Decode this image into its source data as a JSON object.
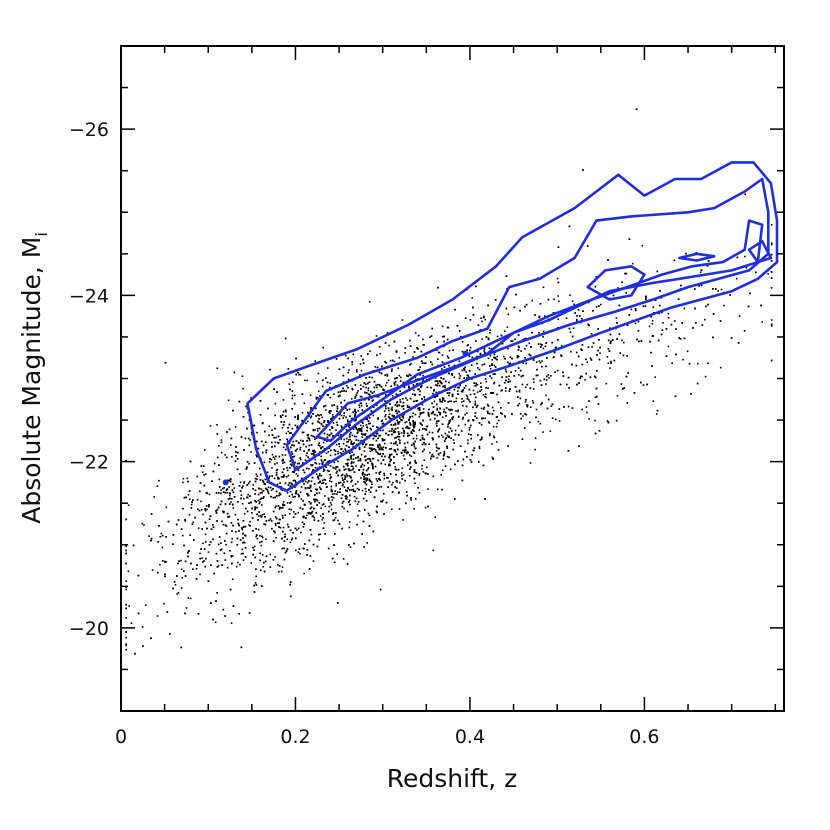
{
  "chart_data": {
    "type": "scatter",
    "xlabel": "Redshift, z",
    "ylabel": "Absolute Magnitude, M",
    "ylabel_subscript": "i",
    "xlim": [
      0,
      0.76
    ],
    "ylim": [
      -19,
      -27
    ],
    "y_inverted": true,
    "xticks": [
      0,
      0.2,
      0.4,
      0.6
    ],
    "xtick_labels": [
      "0",
      "0.2",
      "0.4",
      "0.6"
    ],
    "yticks": [
      -20,
      -22,
      -24,
      -26
    ],
    "ytick_labels": [
      "−20",
      "−22",
      "−24",
      "−26"
    ],
    "grid": false,
    "point_color": "#000000",
    "contour_color": "#1f2fe0",
    "scatter_description": {
      "n_points": 5200,
      "trend": "magnitude brightens with redshift",
      "core_center": [
        0.25,
        -22.4
      ],
      "outliers": [
        [
          0.59,
          -26.25
        ],
        [
          0.05,
          -23.2
        ],
        [
          0.015,
          -19.7
        ]
      ]
    },
    "contours": [
      {
        "name": "outer",
        "points": [
          [
            0.145,
            -22.7
          ],
          [
            0.175,
            -23.0
          ],
          [
            0.215,
            -23.15
          ],
          [
            0.27,
            -23.35
          ],
          [
            0.33,
            -23.65
          ],
          [
            0.38,
            -23.95
          ],
          [
            0.43,
            -24.35
          ],
          [
            0.46,
            -24.7
          ],
          [
            0.52,
            -25.05
          ],
          [
            0.57,
            -25.45
          ],
          [
            0.6,
            -25.2
          ],
          [
            0.635,
            -25.4
          ],
          [
            0.665,
            -25.4
          ],
          [
            0.7,
            -25.6
          ],
          [
            0.725,
            -25.6
          ],
          [
            0.745,
            -25.35
          ],
          [
            0.752,
            -24.9
          ],
          [
            0.752,
            -24.4
          ],
          [
            0.73,
            -24.2
          ],
          [
            0.7,
            -24.05
          ],
          [
            0.665,
            -23.95
          ],
          [
            0.63,
            -23.85
          ],
          [
            0.59,
            -23.7
          ],
          [
            0.55,
            -23.55
          ],
          [
            0.5,
            -23.35
          ],
          [
            0.445,
            -23.15
          ],
          [
            0.4,
            -23.0
          ],
          [
            0.36,
            -22.8
          ],
          [
            0.31,
            -22.5
          ],
          [
            0.265,
            -22.15
          ],
          [
            0.225,
            -21.9
          ],
          [
            0.19,
            -21.65
          ],
          [
            0.17,
            -21.75
          ],
          [
            0.155,
            -22.15
          ],
          [
            0.145,
            -22.7
          ]
        ]
      },
      {
        "name": "middle",
        "points": [
          [
            0.19,
            -22.2
          ],
          [
            0.235,
            -22.85
          ],
          [
            0.28,
            -23.05
          ],
          [
            0.34,
            -23.25
          ],
          [
            0.38,
            -23.45
          ],
          [
            0.42,
            -23.6
          ],
          [
            0.445,
            -24.1
          ],
          [
            0.48,
            -24.2
          ],
          [
            0.52,
            -24.45
          ],
          [
            0.545,
            -24.9
          ],
          [
            0.585,
            -24.95
          ],
          [
            0.65,
            -25.0
          ],
          [
            0.68,
            -25.05
          ],
          [
            0.715,
            -25.25
          ],
          [
            0.735,
            -25.4
          ],
          [
            0.742,
            -25.0
          ],
          [
            0.742,
            -24.5
          ],
          [
            0.72,
            -24.3
          ],
          [
            0.685,
            -24.2
          ],
          [
            0.65,
            -24.1
          ],
          [
            0.61,
            -23.95
          ],
          [
            0.565,
            -23.8
          ],
          [
            0.515,
            -23.65
          ],
          [
            0.46,
            -23.45
          ],
          [
            0.41,
            -23.25
          ],
          [
            0.355,
            -23.0
          ],
          [
            0.31,
            -22.75
          ],
          [
            0.27,
            -22.45
          ],
          [
            0.235,
            -22.15
          ],
          [
            0.2,
            -21.9
          ],
          [
            0.19,
            -22.2
          ]
        ]
      },
      {
        "name": "inner",
        "points": [
          [
            0.225,
            -22.3
          ],
          [
            0.26,
            -22.7
          ],
          [
            0.295,
            -22.8
          ],
          [
            0.345,
            -23.0
          ],
          [
            0.385,
            -23.15
          ],
          [
            0.42,
            -23.3
          ],
          [
            0.45,
            -23.55
          ],
          [
            0.49,
            -23.7
          ],
          [
            0.53,
            -23.9
          ],
          [
            0.56,
            -24.05
          ],
          [
            0.61,
            -24.15
          ],
          [
            0.64,
            -24.2
          ],
          [
            0.67,
            -24.25
          ],
          [
            0.7,
            -24.3
          ],
          [
            0.73,
            -24.4
          ],
          [
            0.735,
            -24.85
          ],
          [
            0.72,
            -24.9
          ],
          [
            0.715,
            -24.55
          ],
          [
            0.69,
            -24.4
          ],
          [
            0.655,
            -24.35
          ],
          [
            0.62,
            -24.25
          ],
          [
            0.58,
            -24.1
          ],
          [
            0.54,
            -23.95
          ],
          [
            0.49,
            -23.75
          ],
          [
            0.44,
            -23.5
          ],
          [
            0.39,
            -23.25
          ],
          [
            0.34,
            -23.05
          ],
          [
            0.3,
            -22.75
          ],
          [
            0.265,
            -22.5
          ],
          [
            0.24,
            -22.25
          ],
          [
            0.225,
            -22.3
          ]
        ]
      },
      {
        "name": "blob-1",
        "points": [
          [
            0.535,
            -24.1
          ],
          [
            0.555,
            -24.3
          ],
          [
            0.585,
            -24.35
          ],
          [
            0.6,
            -24.25
          ],
          [
            0.585,
            -24.0
          ],
          [
            0.56,
            -23.95
          ],
          [
            0.535,
            -24.1
          ]
        ]
      },
      {
        "name": "blob-2",
        "points": [
          [
            0.64,
            -24.45
          ],
          [
            0.66,
            -24.5
          ],
          [
            0.68,
            -24.47
          ],
          [
            0.66,
            -24.42
          ],
          [
            0.64,
            -24.45
          ]
        ]
      },
      {
        "name": "blob-3",
        "points": [
          [
            0.72,
            -24.55
          ],
          [
            0.735,
            -24.65
          ],
          [
            0.745,
            -24.45
          ],
          [
            0.73,
            -24.4
          ],
          [
            0.72,
            -24.55
          ]
        ]
      }
    ]
  }
}
